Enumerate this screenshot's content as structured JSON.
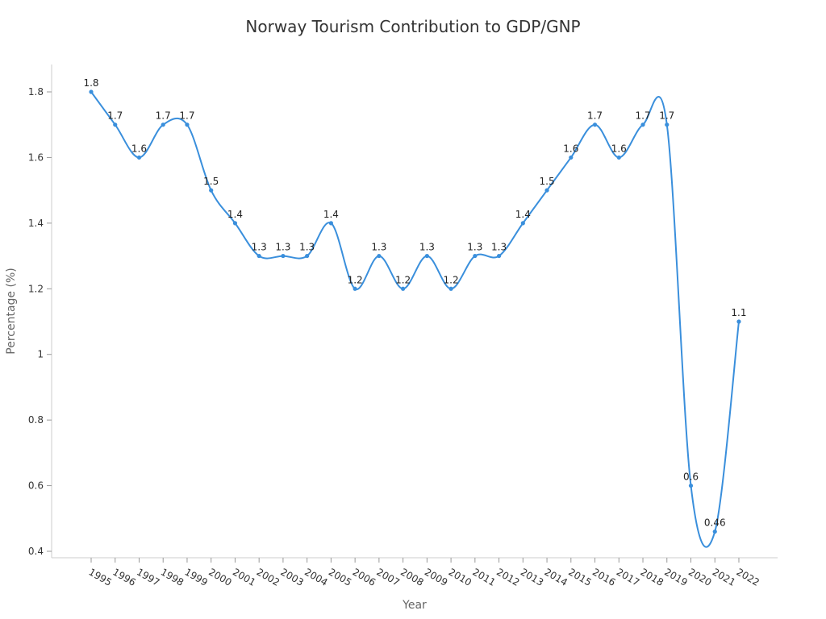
{
  "chart_data": {
    "type": "line",
    "title": "Norway Tourism Contribution to GDP/GNP",
    "xlabel": "Year",
    "ylabel": "Percentage (%)",
    "categories": [
      "1995",
      "1996",
      "1997",
      "1998",
      "1999",
      "2000",
      "2001",
      "2002",
      "2003",
      "2004",
      "2005",
      "2006",
      "2007",
      "2008",
      "2009",
      "2010",
      "2011",
      "2012",
      "2013",
      "2014",
      "2015",
      "2016",
      "2017",
      "2018",
      "2019",
      "2020",
      "2021",
      "2022"
    ],
    "values": [
      1.8,
      1.7,
      1.6,
      1.7,
      1.7,
      1.5,
      1.4,
      1.3,
      1.3,
      1.3,
      1.4,
      1.2,
      1.3,
      1.2,
      1.3,
      1.2,
      1.3,
      1.3,
      1.4,
      1.5,
      1.6,
      1.7,
      1.6,
      1.7,
      1.7,
      0.6,
      0.46,
      1.1
    ],
    "data_labels": [
      "1.8",
      "1.7",
      "1.6",
      "1.7",
      "1.7",
      "1.5",
      "1.4",
      "1.3",
      "1.3",
      "1.3",
      "1.4",
      "1.2",
      "1.3",
      "1.2",
      "1.3",
      "1.2",
      "1.3",
      "1.3",
      "1.4",
      "1.5",
      "1.6",
      "1.7",
      "1.6",
      "1.7",
      "1.7",
      "0.6",
      "0.46",
      "1.1"
    ],
    "yticks": [
      0.4,
      0.6,
      0.8,
      1,
      1.2,
      1.4,
      1.6,
      1.8
    ],
    "ytick_labels": [
      "0.4",
      "0.6",
      "0.8",
      "1",
      "1.2",
      "1.4",
      "1.6",
      "1.8"
    ],
    "ylim": [
      0.38,
      1.88
    ],
    "line_color": "#3a8fdc",
    "grid": false,
    "smooth": true
  }
}
